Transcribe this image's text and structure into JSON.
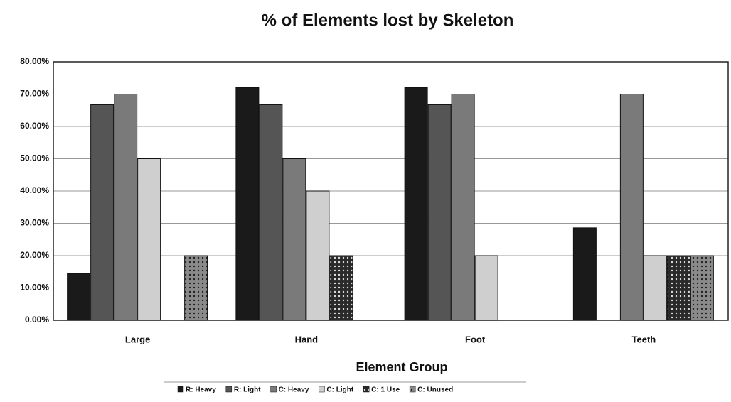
{
  "chart_data": {
    "type": "bar",
    "title": "% of Elements lost by Skeleton",
    "x_label": "Element Group",
    "categories": [
      "Large",
      "Hand",
      "Foot",
      "Teeth"
    ],
    "series": [
      {
        "name": "R: Heavy",
        "color": "#1a1a1a",
        "values": [
          14.5,
          72,
          72,
          28.6
        ]
      },
      {
        "name": "R: Light",
        "color": "#555555",
        "values": [
          66.7,
          66.7,
          66.7,
          0
        ]
      },
      {
        "name": "C: Heavy",
        "color": "#7a7a7a",
        "values": [
          70,
          50,
          70,
          70
        ]
      },
      {
        "name": "C: Light",
        "color": "#cfcfcf",
        "values": [
          50,
          40,
          20,
          20
        ]
      },
      {
        "name": "C: 1 Use",
        "color": "#2a2a2a",
        "pattern": "dots",
        "values": [
          0,
          20,
          0,
          20
        ]
      },
      {
        "name": "C: Unused",
        "color": "#8a8a8a",
        "pattern": "dots",
        "values": [
          20,
          0,
          0,
          20
        ]
      }
    ],
    "ylim": [
      0,
      80
    ],
    "yticks": [
      {
        "value": 0,
        "label": "0.00%"
      },
      {
        "value": 10,
        "label": "10.00%"
      },
      {
        "value": 20,
        "label": "20.00%"
      },
      {
        "value": 30,
        "label": "30.00%"
      },
      {
        "value": 40,
        "label": "40.00%"
      },
      {
        "value": 50,
        "label": "50.00%"
      },
      {
        "value": 60,
        "label": "60.00%"
      },
      {
        "value": 70,
        "label": "70.00%"
      },
      {
        "value": 80,
        "label": "80.00%"
      }
    ],
    "grid": true
  }
}
